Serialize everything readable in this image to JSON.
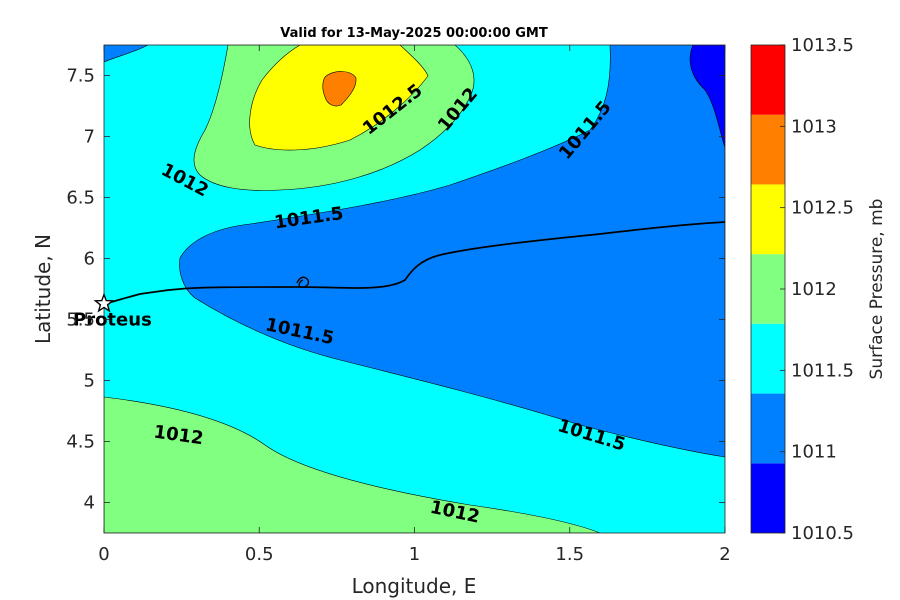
{
  "chart_data": {
    "type": "contour",
    "title": "Valid for 13-May-2025 00:00:00 GMT",
    "xlabel": "Longitude, E",
    "ylabel": "Latitude, N",
    "xlim": [
      0,
      2
    ],
    "ylim": [
      3.75,
      7.75
    ],
    "xticks": [
      "0",
      "0.5",
      "1",
      "1.5",
      "2"
    ],
    "yticks": [
      "4",
      "4.5",
      "5",
      "5.5",
      "6",
      "6.5",
      "7",
      "7.5"
    ],
    "colorbar": {
      "label": "Surface Pressure, mb",
      "levels": [
        "1010.5",
        "1011",
        "1011.5",
        "1012",
        "1012.5",
        "1013",
        "1013.5"
      ],
      "colors": [
        "#0000ff",
        "#0080ff",
        "#00ffff",
        "#80ff80",
        "#ffff00",
        "#ff8000",
        "#ff0000"
      ]
    },
    "contour_labels": [
      {
        "text": "1012",
        "x": 0.26,
        "y": 6.64,
        "angle": 28
      },
      {
        "text": "1011.5",
        "x": 0.66,
        "y": 6.33,
        "angle": -8
      },
      {
        "text": "1012.5",
        "x": 0.93,
        "y": 7.22,
        "angle": -38
      },
      {
        "text": "1012",
        "x": 1.14,
        "y": 7.22,
        "angle": -50
      },
      {
        "text": "1011.5",
        "x": 1.55,
        "y": 7.05,
        "angle": -50
      },
      {
        "text": "1011.5",
        "x": 0.63,
        "y": 5.4,
        "angle": 12
      },
      {
        "text": "1012",
        "x": 0.24,
        "y": 4.55,
        "angle": 8
      },
      {
        "text": "1011.5",
        "x": 1.57,
        "y": 4.55,
        "angle": 17
      },
      {
        "text": "1012",
        "x": 1.13,
        "y": 3.92,
        "angle": 12
      }
    ],
    "marker": {
      "label": "Proteus",
      "lon": 0.0,
      "lat": 5.63
    }
  }
}
